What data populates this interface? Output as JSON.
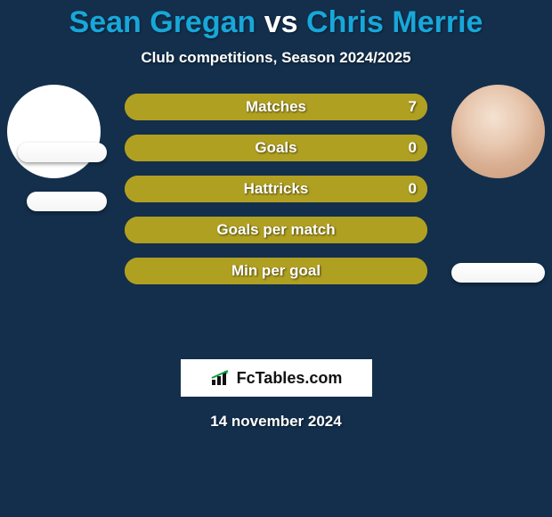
{
  "background_color": "#132f4c",
  "title": {
    "player1": "Sean Gregan",
    "vs": "vs",
    "player2": "Chris Merrie",
    "fontsize": 34,
    "color_player": "#18a7d9",
    "color_vs": "#ffffff"
  },
  "subtitle": {
    "text": "Club competitions, Season 2024/2025",
    "fontsize": 17
  },
  "left_color": "#b0a021",
  "right_color": "#b0a021",
  "neutral_color": "#b0a021",
  "bars": [
    {
      "label": "Matches",
      "left_val": "",
      "right_val": "7",
      "left_pct": 0,
      "right_pct": 100
    },
    {
      "label": "Goals",
      "left_val": "",
      "right_val": "0",
      "left_pct": 0,
      "right_pct": 100
    },
    {
      "label": "Hattricks",
      "left_val": "",
      "right_val": "0",
      "left_pct": 0,
      "right_pct": 100
    },
    {
      "label": "Goals per match",
      "left_val": "",
      "right_val": "",
      "left_pct": 0,
      "right_pct": 100
    },
    {
      "label": "Min per goal",
      "left_val": "",
      "right_val": "",
      "left_pct": 0,
      "right_pct": 100
    }
  ],
  "brand": {
    "name": "FcTables.com",
    "accent": "#0aa040"
  },
  "date": "14 november 2024"
}
